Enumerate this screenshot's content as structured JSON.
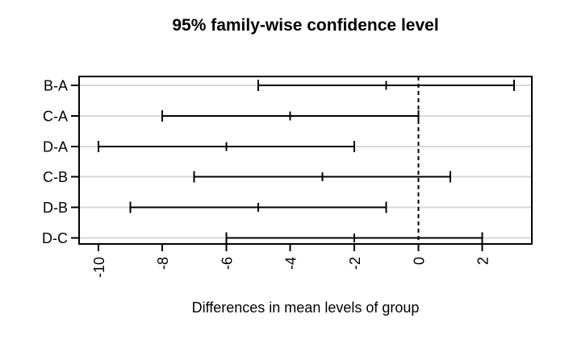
{
  "title": "95% family-wise confidence level",
  "xlabel": "Differences in mean levels of group",
  "chart_data": {
    "type": "errorbar",
    "title": "95% family-wise confidence level",
    "xlabel": "Differences in mean levels of group",
    "ylabel": "",
    "categories": [
      "B-A",
      "C-A",
      "D-A",
      "C-B",
      "D-B",
      "D-C"
    ],
    "intervals": [
      {
        "label": "B-A",
        "lower": -5,
        "center": -1,
        "upper": 3
      },
      {
        "label": "C-A",
        "lower": -8,
        "center": -4,
        "upper": 0
      },
      {
        "label": "D-A",
        "lower": -10,
        "center": -6,
        "upper": -2
      },
      {
        "label": "C-B",
        "lower": -7,
        "center": -3,
        "upper": 1
      },
      {
        "label": "D-B",
        "lower": -9,
        "center": -5,
        "upper": -1
      },
      {
        "label": "D-C",
        "lower": -6,
        "center": -2,
        "upper": 2
      }
    ],
    "x_ticks": [
      -10,
      -8,
      -6,
      -4,
      -2,
      0,
      2
    ],
    "x_tick_labels": [
      "-10",
      "-8",
      "-6",
      "-4",
      "-2",
      "0",
      "2"
    ],
    "xlim": [
      -10.6,
      3.55
    ],
    "reference_line_x": 0,
    "reference_line_style": "dashed",
    "grid": "horizontal-light-gray-lines",
    "legend": "none",
    "colors": {
      "line": "#000000",
      "grid": "#d9d9d9",
      "background": "#ffffff"
    }
  }
}
